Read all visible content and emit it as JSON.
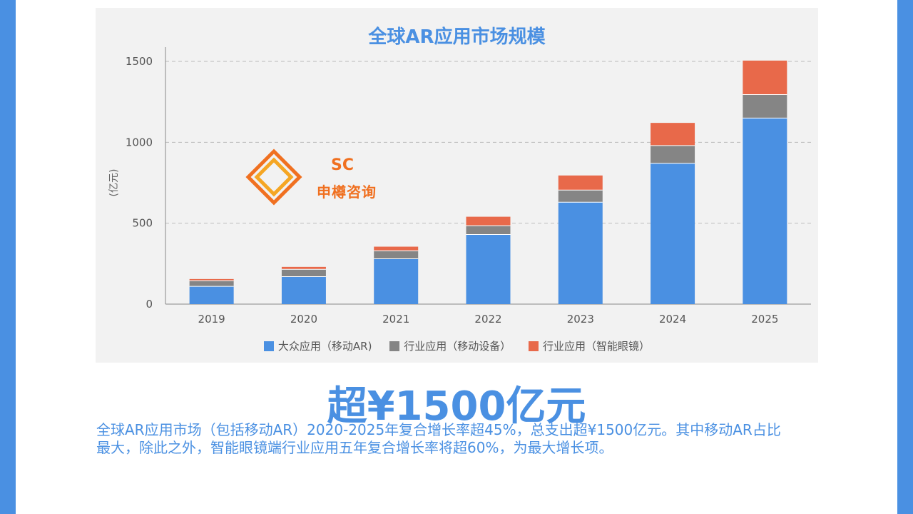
{
  "chart_data": {
    "type": "bar",
    "stacked": true,
    "title": "全球AR应用市场规模",
    "ylabel": "(亿元)",
    "xlabel": "",
    "ylim": [
      0,
      1500
    ],
    "yticks": [
      "0",
      "500",
      "1000",
      "1500"
    ],
    "grid": true,
    "legend_position": "bottom",
    "categories": [
      "2019",
      "2020",
      "2021",
      "2022",
      "2023",
      "2024",
      "2025"
    ],
    "series": [
      {
        "name": "大众应用（移动AR)",
        "color": "#4a90e2",
        "values": [
          110,
          170,
          280,
          430,
          630,
          870,
          1150
        ]
      },
      {
        "name": "行业应用（移动设备）",
        "color": "#858585",
        "values": [
          35,
          45,
          50,
          55,
          75,
          110,
          145
        ]
      },
      {
        "name": "行业应用（智能眼镜）",
        "color": "#e8694a",
        "values": [
          10,
          15,
          25,
          55,
          90,
          140,
          210
        ]
      }
    ]
  },
  "logo": {
    "mark": "SC",
    "text": "申樽咨询"
  },
  "headline": "超¥1500亿元",
  "description": {
    "line1": "全球AR应用市场（包括移动AR）2020-2025年复合增长率超45%，总支出超¥1500亿元。其中移动AR占比",
    "line2": "最大，除此之外，智能眼镜端行业应用五年复合增长率将超60%，为最大增长项。"
  },
  "colors": {
    "accent": "#4a90e2",
    "panel_bg": "#f2f2f2"
  }
}
